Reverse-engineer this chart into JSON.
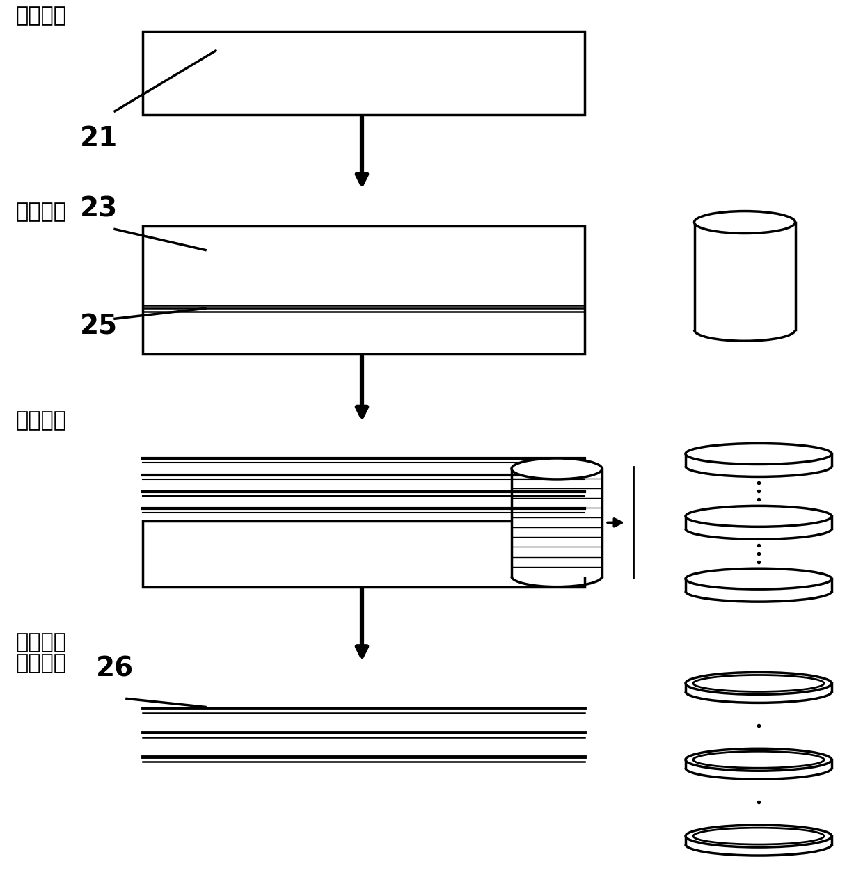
{
  "bg_color": "#ffffff",
  "line_color": "#000000",
  "step1_label": "成长准备",
  "step2_label": "成长工程",
  "step3_label": "切片工程",
  "step4_label1": "研磨工程",
  "step4_label2": "洗净工程",
  "num21": "21",
  "num23": "23",
  "num25": "25",
  "num26": "26",
  "label_fontsize": 22,
  "num_fontsize": 28
}
